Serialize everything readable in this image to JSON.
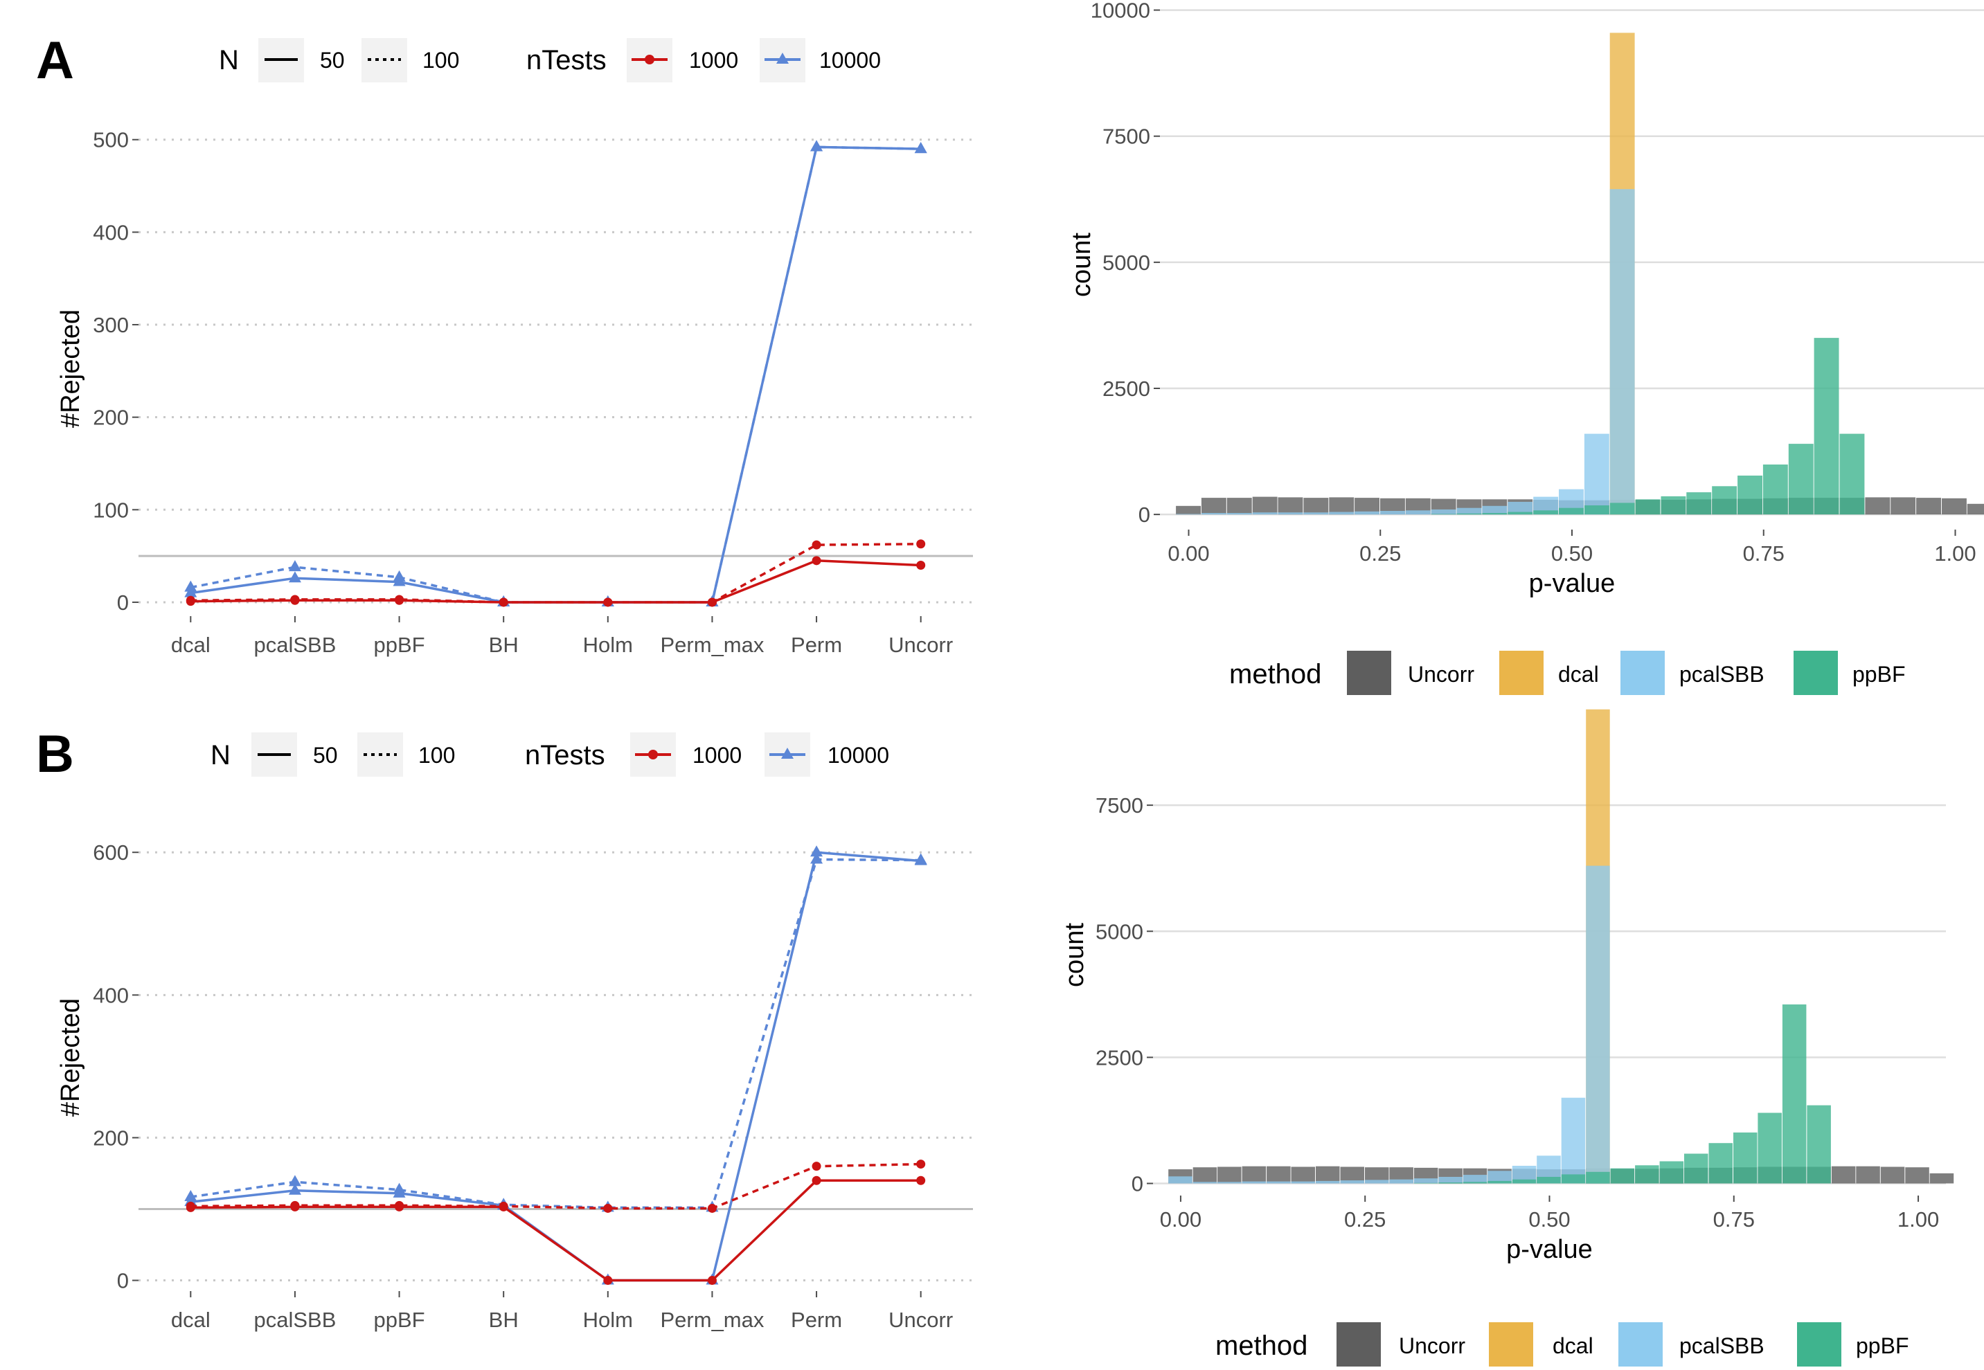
{
  "panel_labels": [
    "A",
    "B"
  ],
  "legend_line": {
    "n_title": "N",
    "n_items": [
      {
        "label": "50",
        "dash": "solid"
      },
      {
        "label": "100",
        "dash": "dotted"
      }
    ],
    "ntests_title": "nTests",
    "ntests_items": [
      {
        "label": "1000",
        "color": "#cc1414",
        "marker": "circle"
      },
      {
        "label": "10000",
        "color": "#5b86d6",
        "marker": "triangle"
      }
    ]
  },
  "legend_hist": {
    "title": "method",
    "items": [
      {
        "label": "Uncorr",
        "color": "#5e5e5e"
      },
      {
        "label": "dcal",
        "color": "#eab54a"
      },
      {
        "label": "pcalSBB",
        "color": "#8ecbef"
      },
      {
        "label": "ppBF",
        "color": "#3fb48e"
      }
    ]
  },
  "chart_data": [
    {
      "id": "A-line",
      "type": "line",
      "ylabel": "#Rejected",
      "xlabel": "",
      "categories": [
        "dcal",
        "pcalSBB",
        "ppBF",
        "BH",
        "Holm",
        "Perm_max",
        "Perm",
        "Uncorr"
      ],
      "ylim": [
        -15,
        520
      ],
      "yticks": [
        0,
        100,
        200,
        300,
        400,
        500
      ],
      "reference_line": 50,
      "series": [
        {
          "name": "N=50, nTests=1000",
          "values": [
            1,
            2,
            2,
            0,
            0,
            0,
            45,
            40
          ]
        },
        {
          "name": "N=100, nTests=1000",
          "values": [
            2,
            3,
            3,
            0,
            0,
            0,
            62,
            63
          ]
        },
        {
          "name": "N=50, nTests=10000",
          "values": [
            10,
            26,
            22,
            0,
            0,
            0,
            492,
            490
          ]
        },
        {
          "name": "N=100, nTests=10000",
          "values": [
            16,
            38,
            27,
            0,
            0,
            0,
            492,
            490
          ]
        }
      ]
    },
    {
      "id": "A-hist",
      "type": "bar",
      "title": "",
      "xlabel": "p-value",
      "ylabel": "count",
      "xlim": [
        -0.0375,
        1.0375
      ],
      "ylim": [
        -300,
        10200
      ],
      "xticks": [
        "0.00",
        "0.25",
        "0.50",
        "0.75",
        "1.00"
      ],
      "yticks": [
        "0",
        "2500",
        "5000",
        "7500",
        "10000"
      ],
      "bin_width": 0.0333,
      "series": [
        {
          "name": "Uncorr",
          "values": [
            170,
            330,
            330,
            350,
            340,
            330,
            340,
            330,
            320,
            320,
            310,
            300,
            300,
            300,
            290,
            280,
            280,
            290,
            290,
            290,
            300,
            310,
            310,
            320,
            330,
            330,
            330,
            340,
            340,
            330,
            320,
            210
          ]
        },
        {
          "name": "dcal",
          "values": [
            0,
            0,
            0,
            0,
            0,
            0,
            0,
            0,
            0,
            0,
            0,
            0,
            0,
            0,
            0,
            0,
            0,
            9550,
            0,
            0,
            0,
            0,
            0,
            0,
            0,
            0,
            0,
            0,
            0,
            0,
            0,
            0
          ]
        },
        {
          "name": "pcalSBB",
          "values": [
            10,
            30,
            30,
            40,
            40,
            40,
            50,
            60,
            70,
            80,
            100,
            130,
            170,
            250,
            350,
            500,
            1600,
            6450,
            0,
            0,
            0,
            0,
            0,
            0,
            0,
            0,
            0,
            0,
            0,
            0,
            0,
            0
          ]
        },
        {
          "name": "ppBF",
          "values": [
            0,
            0,
            0,
            0,
            0,
            0,
            0,
            0,
            0,
            0,
            10,
            20,
            30,
            50,
            80,
            130,
            180,
            230,
            300,
            360,
            440,
            560,
            770,
            990,
            1400,
            3500,
            1600,
            0,
            0,
            0,
            0,
            0
          ]
        }
      ]
    },
    {
      "id": "B-line",
      "type": "line",
      "ylabel": "#Rejected",
      "xlabel": "",
      "categories": [
        "dcal",
        "pcalSBB",
        "ppBF",
        "BH",
        "Holm",
        "Perm_max",
        "Perm",
        "Uncorr"
      ],
      "ylim": [
        -15,
        640
      ],
      "yticks": [
        0,
        200,
        400,
        600
      ],
      "reference_line": 100,
      "series": [
        {
          "name": "N=50, nTests=1000",
          "values": [
            102,
            103,
            103,
            103,
            0,
            0,
            140,
            140
          ]
        },
        {
          "name": "N=100, nTests=1000",
          "values": [
            104,
            105,
            105,
            104,
            101,
            101,
            160,
            163
          ]
        },
        {
          "name": "N=50, nTests=10000",
          "values": [
            110,
            126,
            122,
            105,
            0,
            0,
            600,
            588
          ]
        },
        {
          "name": "N=100, nTests=10000",
          "values": [
            117,
            138,
            127,
            106,
            102,
            102,
            590,
            589
          ]
        }
      ]
    },
    {
      "id": "B-hist",
      "type": "bar",
      "title": "",
      "xlabel": "p-value",
      "ylabel": "count",
      "xlim": [
        -0.0375,
        1.0375
      ],
      "ylim": [
        -240,
        9300
      ],
      "xticks": [
        "0.00",
        "0.25",
        "0.50",
        "0.75",
        "1.00"
      ],
      "yticks": [
        "0",
        "2500",
        "5000",
        "7500"
      ],
      "bin_width": 0.0333,
      "series": [
        {
          "name": "Uncorr",
          "values": [
            280,
            320,
            330,
            340,
            340,
            330,
            340,
            330,
            320,
            320,
            310,
            300,
            300,
            290,
            290,
            280,
            280,
            300,
            290,
            290,
            300,
            310,
            310,
            320,
            330,
            330,
            330,
            340,
            340,
            330,
            320,
            200
          ]
        },
        {
          "name": "dcal",
          "values": [
            0,
            0,
            0,
            0,
            0,
            0,
            0,
            0,
            0,
            0,
            0,
            0,
            0,
            0,
            0,
            0,
            0,
            9400,
            0,
            0,
            0,
            0,
            0,
            0,
            0,
            0,
            0,
            0,
            0,
            0,
            0,
            0
          ]
        },
        {
          "name": "pcalSBB",
          "values": [
            140,
            30,
            30,
            40,
            40,
            40,
            50,
            60,
            70,
            80,
            100,
            130,
            170,
            250,
            350,
            550,
            1700,
            6300,
            0,
            0,
            0,
            0,
            0,
            0,
            0,
            0,
            0,
            0,
            0,
            0,
            0,
            0
          ]
        },
        {
          "name": "ppBF",
          "values": [
            0,
            0,
            0,
            0,
            0,
            0,
            0,
            0,
            0,
            0,
            10,
            20,
            30,
            50,
            80,
            130,
            180,
            230,
            300,
            360,
            440,
            590,
            800,
            1010,
            1400,
            3550,
            1550,
            0,
            0,
            0,
            0,
            0
          ]
        }
      ]
    }
  ]
}
